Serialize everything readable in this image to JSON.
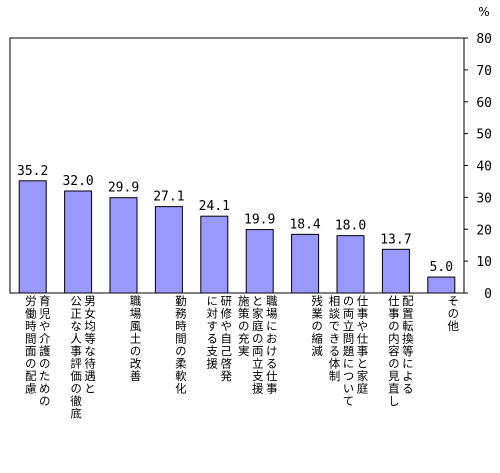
{
  "chart_data": {
    "type": "bar",
    "unit_label": "%",
    "ylim": [
      0,
      80
    ],
    "yticks": [
      0,
      10,
      20,
      30,
      40,
      50,
      60,
      70,
      80
    ],
    "categories": [
      [
        "育児や介護のための",
        "労働時間面の配慮"
      ],
      [
        "男女均等な待遇と",
        "公正な人事評価の徹底"
      ],
      [
        "職場風土の改善"
      ],
      [
        "勤務時間の柔軟化"
      ],
      [
        "研修や自己啓発",
        "に対する支援"
      ],
      [
        "職場における仕事",
        "と家庭の両立支援",
        "施策の充実"
      ],
      [
        "残業の縮減"
      ],
      [
        "仕事や仕事と家庭",
        "の両立問題について",
        "相談できる体制"
      ],
      [
        "配置転換等による",
        "仕事の内容の見直し"
      ],
      [
        "その他"
      ]
    ],
    "values": [
      35.2,
      32.0,
      29.9,
      27.1,
      24.1,
      19.9,
      18.4,
      18.0,
      13.7,
      5.0
    ],
    "value_labels": [
      "35.2",
      "32.0",
      "29.9",
      "27.1",
      "24.1",
      "19.9",
      "18.4",
      "18.0",
      "13.7",
      "5.0"
    ],
    "bar_color": "#9999ff",
    "grid": false
  }
}
